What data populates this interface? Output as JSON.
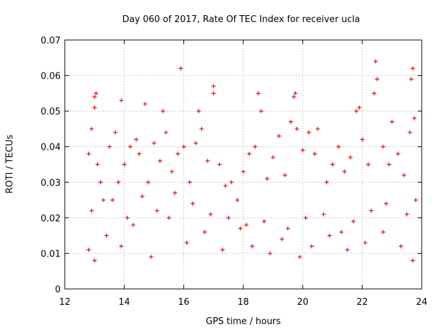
{
  "chart_data": {
    "type": "scatter",
    "title": "Day 060 of 2017, Rate Of TEC Index for receiver ucla",
    "xlabel": "GPS time / hours",
    "ylabel": "ROTI / TECUs",
    "xlim": [
      12,
      24
    ],
    "ylim": [
      0,
      0.07
    ],
    "x_ticks": [
      "12",
      "14",
      "16",
      "18",
      "20",
      "22",
      "24"
    ],
    "y_ticks": [
      "0",
      "0.01",
      "0.02",
      "0.03",
      "0.04",
      "0.05",
      "0.06",
      "0.07"
    ],
    "grid": true,
    "marker": "+",
    "color": "#ff0000",
    "series": [
      {
        "name": "ROTI",
        "x": [
          12.8,
          12.9,
          13.0,
          13.0,
          13.05,
          13.1,
          13.2,
          13.3,
          13.5,
          13.7,
          13.8,
          13.9,
          14.0,
          14.2,
          14.4,
          14.5,
          14.7,
          14.8,
          15.0,
          15.2,
          15.3,
          15.4,
          15.6,
          15.8,
          15.9,
          16.0,
          16.2,
          16.4,
          16.5,
          16.6,
          16.8,
          17.0,
          17.0,
          17.2,
          17.4,
          17.6,
          17.8,
          18.0,
          18.2,
          18.4,
          18.5,
          18.6,
          18.8,
          19.0,
          19.2,
          19.4,
          19.6,
          19.7,
          19.75,
          19.8,
          20.0,
          20.2,
          20.4,
          20.5,
          20.8,
          21.0,
          21.2,
          21.4,
          21.6,
          21.8,
          21.9,
          22.0,
          22.2,
          22.4,
          22.45,
          22.5,
          22.7,
          22.9,
          23.0,
          23.2,
          23.4,
          23.6,
          23.65,
          23.7,
          23.75,
          12.8,
          13.0,
          13.4,
          13.9,
          14.3,
          14.9,
          15.5,
          16.1,
          16.7,
          17.3,
          17.9,
          18.3,
          18.9,
          19.3,
          19.9,
          20.3,
          20.9,
          21.5,
          22.1,
          22.7,
          23.3,
          23.7,
          12.9,
          13.6,
          14.1,
          14.6,
          15.1,
          15.7,
          16.3,
          16.9,
          17.5,
          18.1,
          18.7,
          19.5,
          20.1,
          20.7,
          21.3,
          21.7,
          22.3,
          22.8,
          23.5,
          23.8
        ],
        "y": [
          0.038,
          0.045,
          0.054,
          0.051,
          0.055,
          0.035,
          0.03,
          0.025,
          0.04,
          0.044,
          0.03,
          0.053,
          0.035,
          0.04,
          0.042,
          0.038,
          0.052,
          0.03,
          0.041,
          0.036,
          0.05,
          0.044,
          0.033,
          0.038,
          0.062,
          0.04,
          0.03,
          0.041,
          0.05,
          0.045,
          0.036,
          0.057,
          0.055,
          0.035,
          0.029,
          0.03,
          0.025,
          0.033,
          0.038,
          0.04,
          0.055,
          0.05,
          0.031,
          0.037,
          0.043,
          0.032,
          0.047,
          0.054,
          0.055,
          0.045,
          0.039,
          0.044,
          0.038,
          0.045,
          0.03,
          0.035,
          0.04,
          0.033,
          0.037,
          0.05,
          0.051,
          0.042,
          0.035,
          0.055,
          0.064,
          0.059,
          0.04,
          0.035,
          0.047,
          0.038,
          0.032,
          0.044,
          0.059,
          0.062,
          0.048,
          0.011,
          0.008,
          0.015,
          0.012,
          0.018,
          0.009,
          0.02,
          0.013,
          0.016,
          0.011,
          0.017,
          0.012,
          0.01,
          0.014,
          0.009,
          0.012,
          0.015,
          0.011,
          0.013,
          0.016,
          0.012,
          0.008,
          0.022,
          0.025,
          0.02,
          0.026,
          0.022,
          0.027,
          0.024,
          0.021,
          0.02,
          0.018,
          0.019,
          0.017,
          0.02,
          0.021,
          0.016,
          0.019,
          0.022,
          0.024,
          0.021,
          0.025
        ]
      }
    ]
  }
}
